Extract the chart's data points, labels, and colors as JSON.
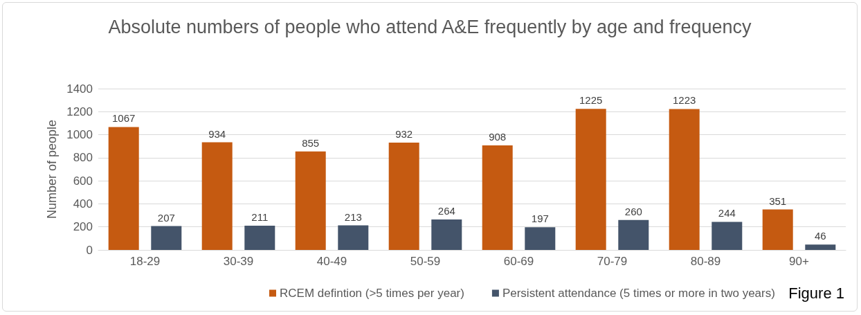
{
  "chart_data": {
    "type": "bar",
    "title": "Absolute numbers of people who attend A&E frequently by age and frequency",
    "ylabel": "Number of people",
    "categories": [
      "18-29",
      "30-39",
      "40-49",
      "50-59",
      "60-69",
      "70-79",
      "80-89",
      "90+"
    ],
    "series": [
      {
        "name": "RCEM defintion (>5 times per year)",
        "color": "#c55a11",
        "values": [
          1067,
          934,
          855,
          932,
          908,
          1225,
          1223,
          351
        ]
      },
      {
        "name": "Persistent attendance (5 times or more in two years)",
        "color": "#44546a",
        "values": [
          207,
          211,
          213,
          264,
          197,
          260,
          244,
          46
        ]
      }
    ],
    "ylim": [
      0,
      1400
    ],
    "yticks": [
      0,
      200,
      400,
      600,
      800,
      1000,
      1200,
      1400
    ],
    "grid": "y",
    "legend": "bottom",
    "data_labels": true,
    "annotations": [
      "Figure 1"
    ]
  }
}
